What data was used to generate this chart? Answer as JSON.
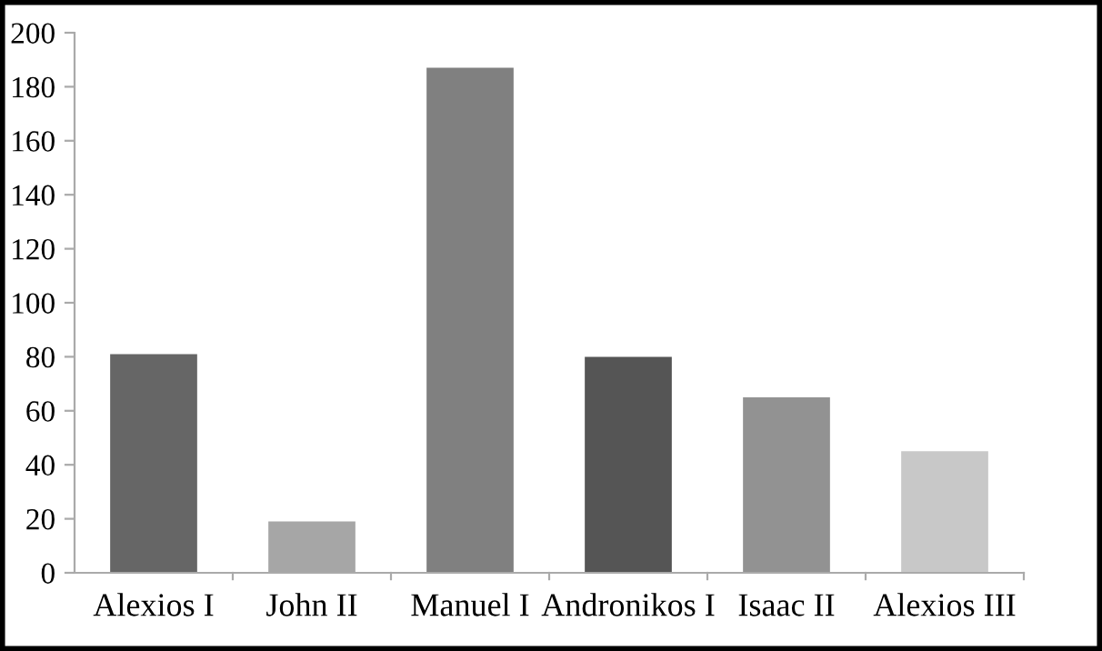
{
  "chart_data": {
    "type": "bar",
    "categories": [
      "Alexios I",
      "John II",
      "Manuel I",
      "Andronikos I",
      "Isaac II",
      "Alexios III"
    ],
    "values": [
      81,
      19,
      187,
      80,
      65,
      45
    ],
    "colors": [
      "#666666",
      "#a6a6a6",
      "#808080",
      "#555555",
      "#929292",
      "#c8c8c8"
    ],
    "ylim": [
      0,
      200
    ],
    "yticks": [
      0,
      20,
      40,
      60,
      80,
      100,
      120,
      140,
      160,
      180,
      200
    ],
    "grid": false
  }
}
